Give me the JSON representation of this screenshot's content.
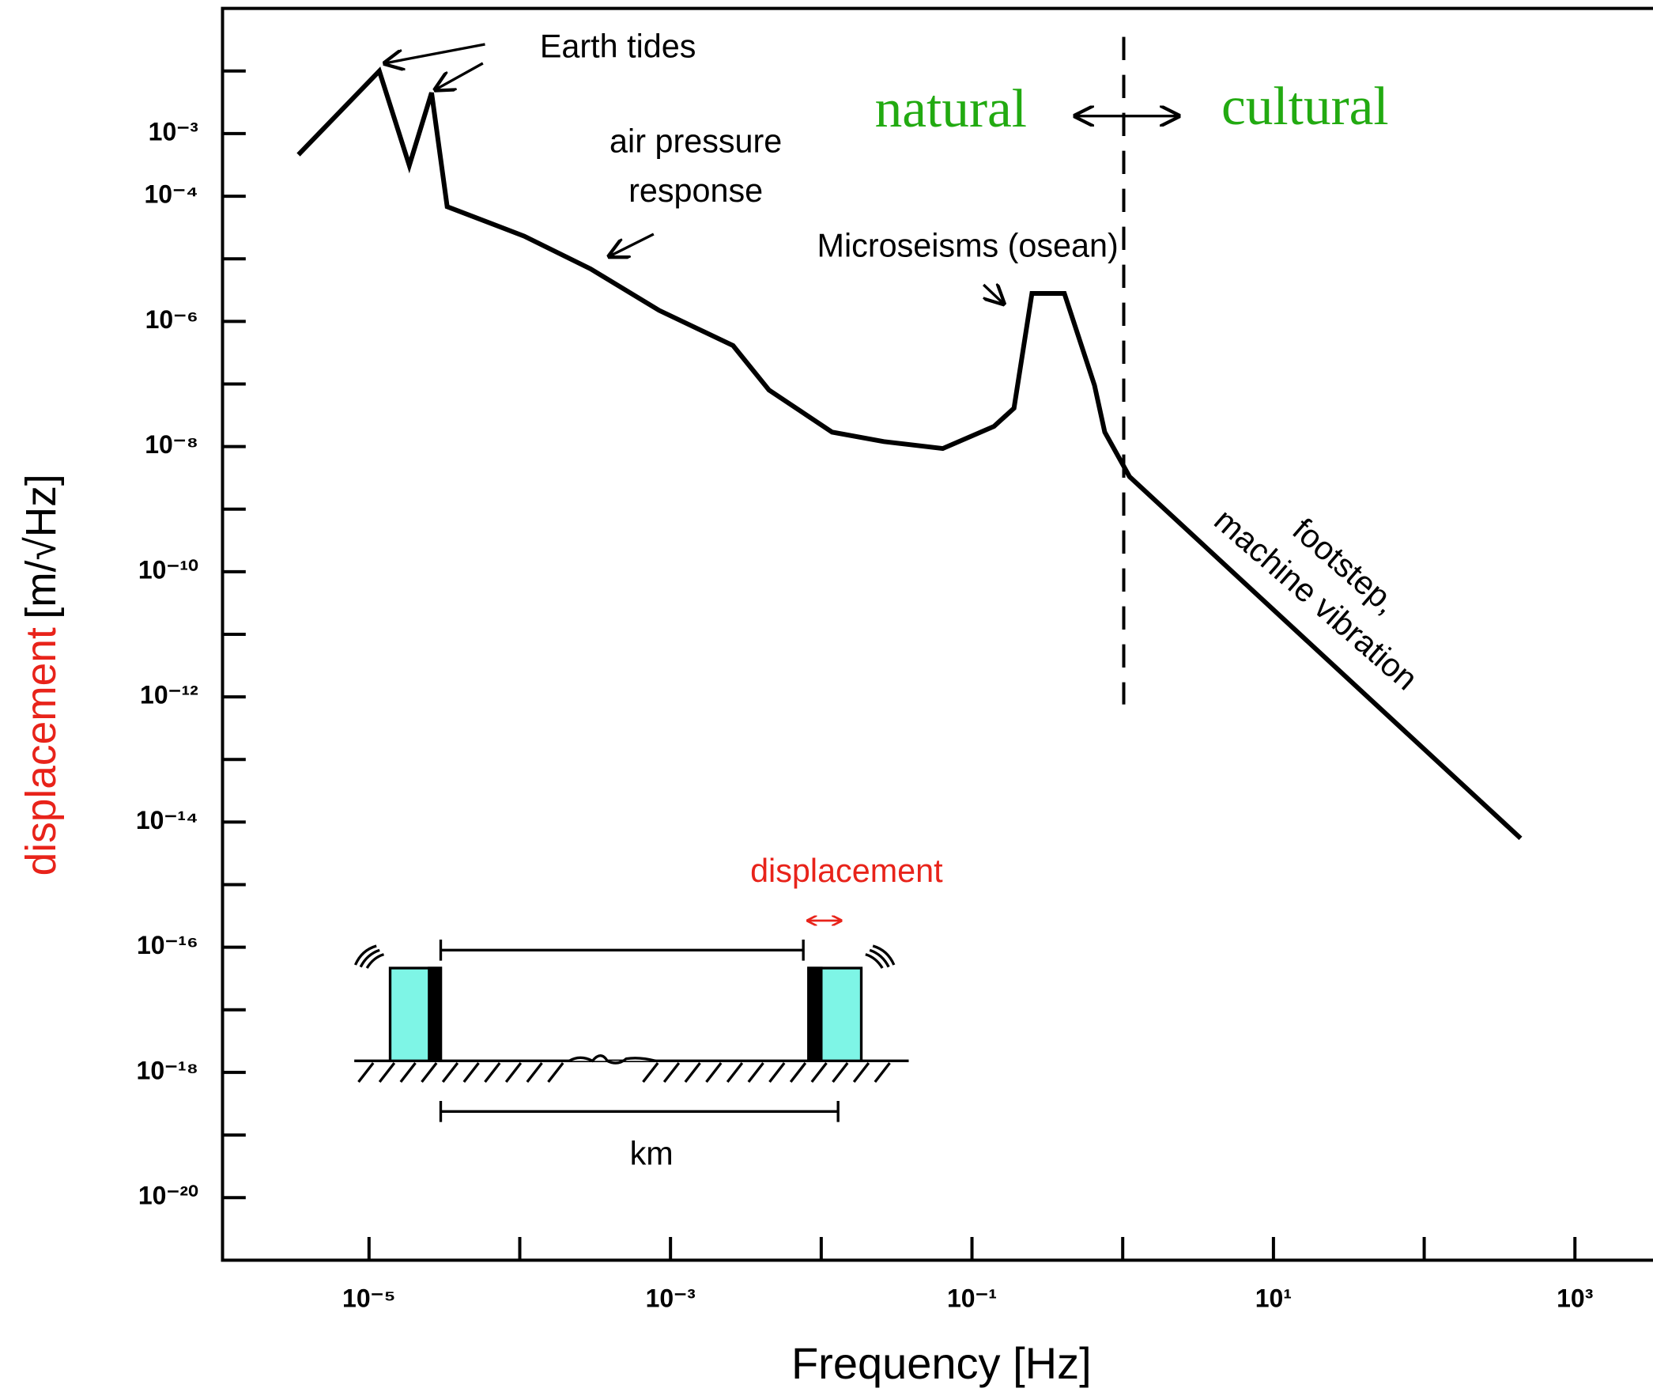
{
  "chart_data": {
    "type": "line",
    "xlabel": "Frequency [Hz]",
    "ylabel": {
      "quantity": "displacement",
      "unit": "[m/√Hz]"
    },
    "xscale": "log",
    "yscale": "log",
    "xlim": [
      1.067e-06,
      3289
    ],
    "ylim": [
      1e-21,
      0.1
    ],
    "xticks": [
      {
        "value": 1e-05,
        "label": "10⁻⁵"
      },
      {
        "value": 0.001,
        "label": "10⁻³"
      },
      {
        "value": 0.1,
        "label": "10⁻¹"
      },
      {
        "value": 10,
        "label": "10¹"
      },
      {
        "value": 1000,
        "label": "10³"
      }
    ],
    "xminorticks": [
      0.0001,
      0.01,
      1,
      100
    ],
    "yticks": [
      {
        "value": 0.001,
        "label": "10⁻³"
      },
      {
        "value": 0.0001,
        "label": "10⁻⁴"
      },
      {
        "value": 1e-06,
        "label": "10⁻⁶"
      },
      {
        "value": 1e-08,
        "label": "10⁻⁸"
      },
      {
        "value": 1e-10,
        "label": "10⁻¹⁰"
      },
      {
        "value": 1e-12,
        "label": "10⁻¹²"
      },
      {
        "value": 1e-14,
        "label": "10⁻¹⁴"
      },
      {
        "value": 1e-16,
        "label": "10⁻¹⁶"
      },
      {
        "value": 1e-18,
        "label": "10⁻¹⁸"
      },
      {
        "value": 1e-20,
        "label": "10⁻²⁰"
      }
    ],
    "yminorticks": [
      0.01,
      1e-05,
      1e-07,
      1e-09,
      1e-11,
      1e-13,
      1e-15,
      1e-17,
      1e-19
    ],
    "x": [
      3.4e-06,
      1.17e-05,
      1.85e-05,
      2.6e-05,
      3.3e-05,
      0.000107,
      0.000295,
      0.00084,
      0.0026,
      0.0045,
      0.0118,
      0.026,
      0.064,
      0.14,
      0.19,
      0.25,
      0.41,
      0.65,
      0.76,
      1.11,
      436
    ],
    "series": [
      {
        "color": "#000000",
        "values": [
          0.00046,
          0.01,
          0.00031,
          0.0045,
          6.8e-05,
          2.3e-05,
          6.9e-06,
          1.5e-06,
          4.1e-07,
          8e-08,
          1.7e-08,
          1.2e-08,
          9.3e-09,
          2.1e-08,
          4.1e-08,
          2.8e-06,
          2.8e-06,
          9.5e-08,
          1.7e-08,
          3.3e-09,
          5.5e-15
        ]
      }
    ],
    "annotations": {
      "earth_tides": "Earth tides",
      "air_pressure": [
        "air pressure",
        "response"
      ],
      "microseisms": "Microseisms (osean)",
      "natural": "natural",
      "cultural": "cultural",
      "footstep": [
        "footstep,",
        "machine vibration"
      ],
      "inset_displacement": "displacement",
      "inset_km": "km"
    }
  }
}
